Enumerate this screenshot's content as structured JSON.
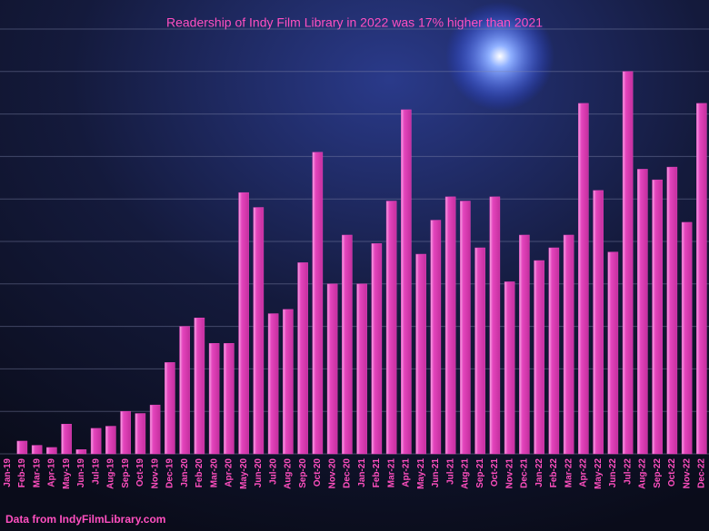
{
  "chart_data": {
    "type": "bar",
    "title": "Readership of Indy Film Library in 2022 was 17% higher than 2021",
    "source": "Data from IndyFilmLibrary.com",
    "categories": [
      "Jan-19",
      "Feb-19",
      "Mar-19",
      "Apr-19",
      "May-19",
      "Jun-19",
      "Jul-19",
      "Aug-19",
      "Sep-19",
      "Oct-19",
      "Nov-19",
      "Dec-19",
      "Jan-20",
      "Feb-20",
      "Mar-20",
      "Apr-20",
      "May-20",
      "Jun-20",
      "Jul-20",
      "Aug-20",
      "Sep-20",
      "Oct-20",
      "Nov-20",
      "Dec-20",
      "Jan-21",
      "Feb-21",
      "Mar-21",
      "Apr-21",
      "May-21",
      "Jun-21",
      "Jul-21",
      "Aug-21",
      "Sep-21",
      "Oct-21",
      "Nov-21",
      "Dec-21",
      "Jan-22",
      "Feb-22",
      "Mar-22",
      "Apr-22",
      "May-22",
      "Jun-22",
      "Jul-22",
      "Aug-22",
      "Sep-22",
      "Oct-22",
      "Nov-22",
      "Dec-22"
    ],
    "values": [
      0,
      0.3,
      0.2,
      0.15,
      0.7,
      0.1,
      0.6,
      0.65,
      1,
      0.95,
      1.15,
      2.15,
      3,
      3.2,
      2.6,
      2.6,
      6.15,
      5.8,
      3.3,
      3.4,
      4.5,
      7.1,
      4,
      5.15,
      4,
      4.95,
      5.95,
      8.1,
      4.7,
      5.5,
      6.05,
      5.95,
      4.85,
      6.05,
      4.05,
      5.15,
      4.55,
      4.85,
      5.15,
      8.25,
      6.2,
      4.75,
      9,
      6.7,
      6.45,
      6.75,
      5.45,
      8.25
    ],
    "color": "#e445bd",
    "ylim": [
      0,
      10
    ],
    "yticks": [
      0,
      1,
      2,
      3,
      4,
      5,
      6,
      7,
      8,
      9,
      10
    ],
    "grid": true
  }
}
